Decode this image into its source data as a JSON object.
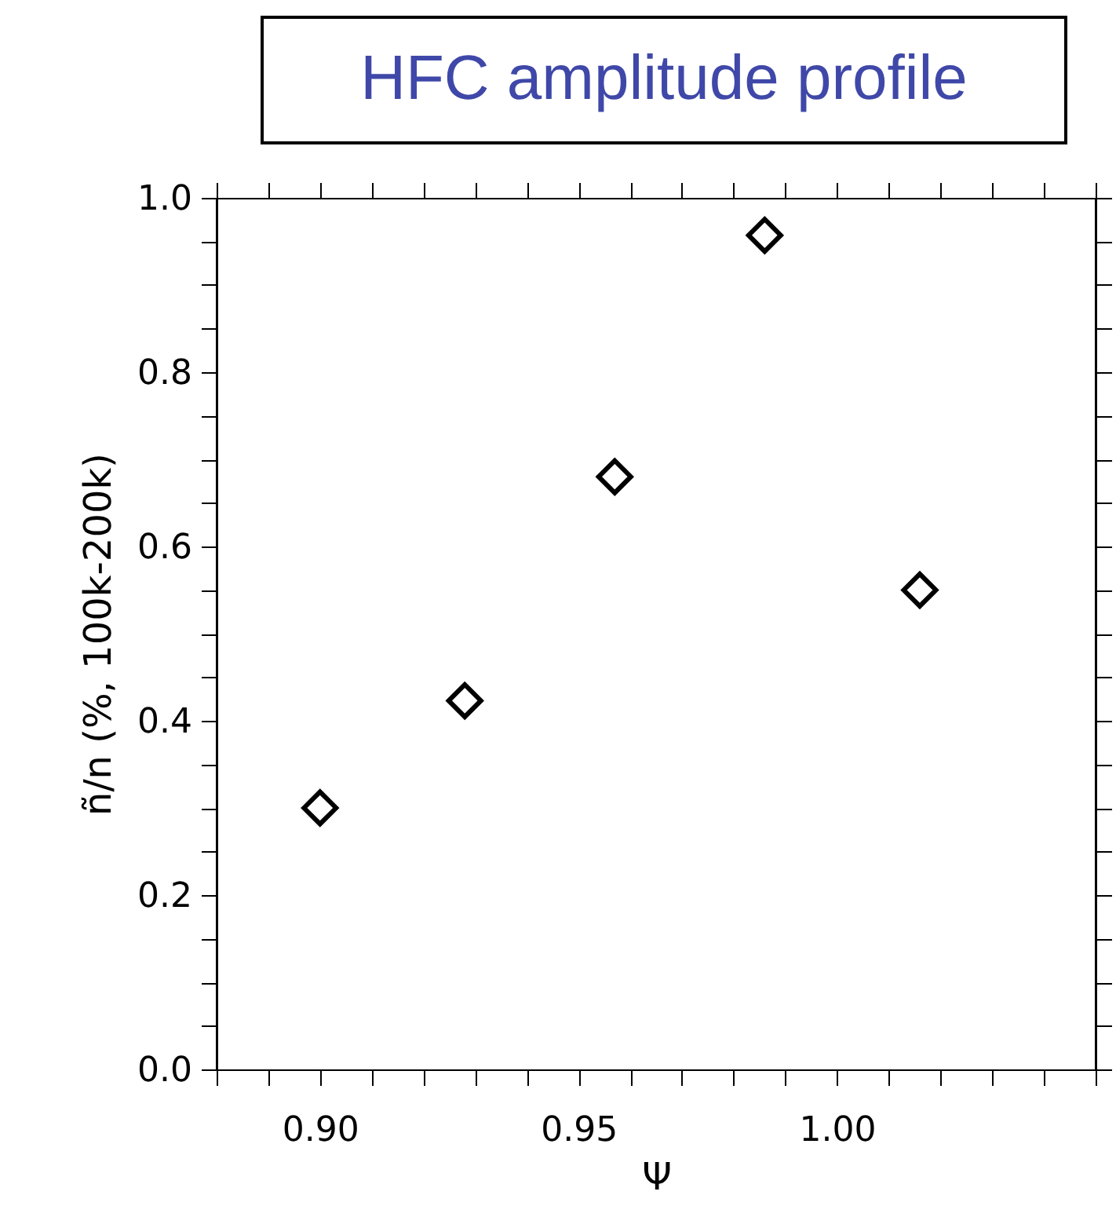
{
  "chart_data": {
    "type": "scatter",
    "title": "HFC amplitude profile",
    "xlabel": "Ψ",
    "ylabel": "ñ/n (%, 100k-200k)",
    "x": [
      0.9,
      0.928,
      0.957,
      0.986,
      1.016
    ],
    "series": [
      {
        "color": "#000000",
        "values": [
          0.3,
          0.423,
          0.68,
          0.957,
          0.55
        ]
      }
    ],
    "marker": "diamond",
    "grid": false,
    "legend": false,
    "xlim": [
      0.88,
      1.05
    ],
    "xticks": [
      {
        "value": 0.88,
        "label": null
      },
      {
        "value": 0.89,
        "label": null
      },
      {
        "value": 0.9,
        "label": "0.90"
      },
      {
        "value": 0.91,
        "label": null
      },
      {
        "value": 0.92,
        "label": null
      },
      {
        "value": 0.93,
        "label": null
      },
      {
        "value": 0.94,
        "label": null
      },
      {
        "value": 0.95,
        "label": "0.95"
      },
      {
        "value": 0.96,
        "label": null
      },
      {
        "value": 0.97,
        "label": null
      },
      {
        "value": 0.98,
        "label": null
      },
      {
        "value": 0.99,
        "label": null
      },
      {
        "value": 1.0,
        "label": "1.00"
      },
      {
        "value": 1.01,
        "label": null
      },
      {
        "value": 1.02,
        "label": null
      },
      {
        "value": 1.03,
        "label": null
      },
      {
        "value": 1.04,
        "label": null
      },
      {
        "value": 1.05,
        "label": null
      }
    ],
    "ylim": [
      0,
      1.0
    ],
    "yticks": [
      {
        "value": 0,
        "label": "0.0"
      },
      {
        "value": 0.05,
        "label": null
      },
      {
        "value": 0.1,
        "label": null
      },
      {
        "value": 0.15,
        "label": null
      },
      {
        "value": 0.2,
        "label": "0.2"
      },
      {
        "value": 0.25,
        "label": null
      },
      {
        "value": 0.3,
        "label": null
      },
      {
        "value": 0.35,
        "label": null
      },
      {
        "value": 0.4,
        "label": "0.4"
      },
      {
        "value": 0.45,
        "label": null
      },
      {
        "value": 0.5,
        "label": null
      },
      {
        "value": 0.55,
        "label": null
      },
      {
        "value": 0.6,
        "label": "0.6"
      },
      {
        "value": 0.65,
        "label": null
      },
      {
        "value": 0.7,
        "label": null
      },
      {
        "value": 0.75,
        "label": null
      },
      {
        "value": 0.8,
        "label": "0.8"
      },
      {
        "value": 0.85,
        "label": null
      },
      {
        "value": 0.9,
        "label": null
      },
      {
        "value": 0.95,
        "label": null
      },
      {
        "value": 1.0,
        "label": "1.0"
      }
    ]
  }
}
